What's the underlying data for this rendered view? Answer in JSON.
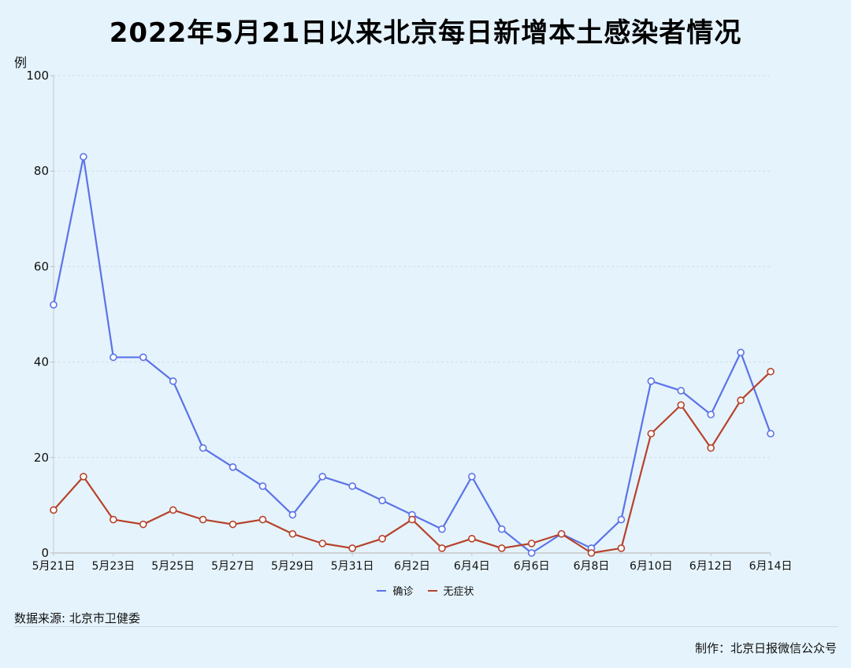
{
  "title": "2022年5月21日以来北京每日新增本土感染者情况",
  "unit_label": "例",
  "source": "数据来源: 北京市卫健委",
  "credit": "制作：北京日报微信公众号",
  "colors": {
    "background": "#e5f3fc",
    "confirmed": "#5b73e8",
    "asymptomatic": "#b5432a"
  },
  "chart_data": {
    "type": "line",
    "title": "2022年5月21日以来北京每日新增本土感染者情况",
    "xlabel": "",
    "ylabel": "例",
    "ylim": [
      0,
      100
    ],
    "yticks": [
      0,
      20,
      40,
      60,
      80,
      100
    ],
    "grid": true,
    "legend_position": "bottom-center",
    "x": [
      "5月21日",
      "5月22日",
      "5月23日",
      "5月24日",
      "5月25日",
      "5月26日",
      "5月27日",
      "5月28日",
      "5月29日",
      "5月30日",
      "5月31日",
      "6月1日",
      "6月2日",
      "6月3日",
      "6月4日",
      "6月5日",
      "6月6日",
      "6月7日",
      "6月8日",
      "6月9日",
      "6月10日",
      "6月11日",
      "6月12日",
      "6月13日",
      "6月14日"
    ],
    "xtick_labels": [
      "5月21日",
      "5月23日",
      "5月25日",
      "5月27日",
      "5月29日",
      "5月31日",
      "6月2日",
      "6月4日",
      "6月6日",
      "6月8日",
      "6月10日",
      "6月12日",
      "6月14日"
    ],
    "series": [
      {
        "name": "确诊",
        "color": "#5b73e8",
        "values": [
          52,
          83,
          41,
          41,
          36,
          22,
          18,
          14,
          8,
          16,
          14,
          11,
          8,
          5,
          16,
          5,
          0,
          4,
          1,
          7,
          36,
          34,
          29,
          42,
          25
        ]
      },
      {
        "name": "无症状",
        "color": "#b5432a",
        "values": [
          9,
          16,
          7,
          6,
          9,
          7,
          6,
          7,
          4,
          2,
          1,
          3,
          7,
          1,
          3,
          1,
          2,
          4,
          0,
          1,
          25,
          31,
          22,
          32,
          38
        ]
      }
    ]
  }
}
